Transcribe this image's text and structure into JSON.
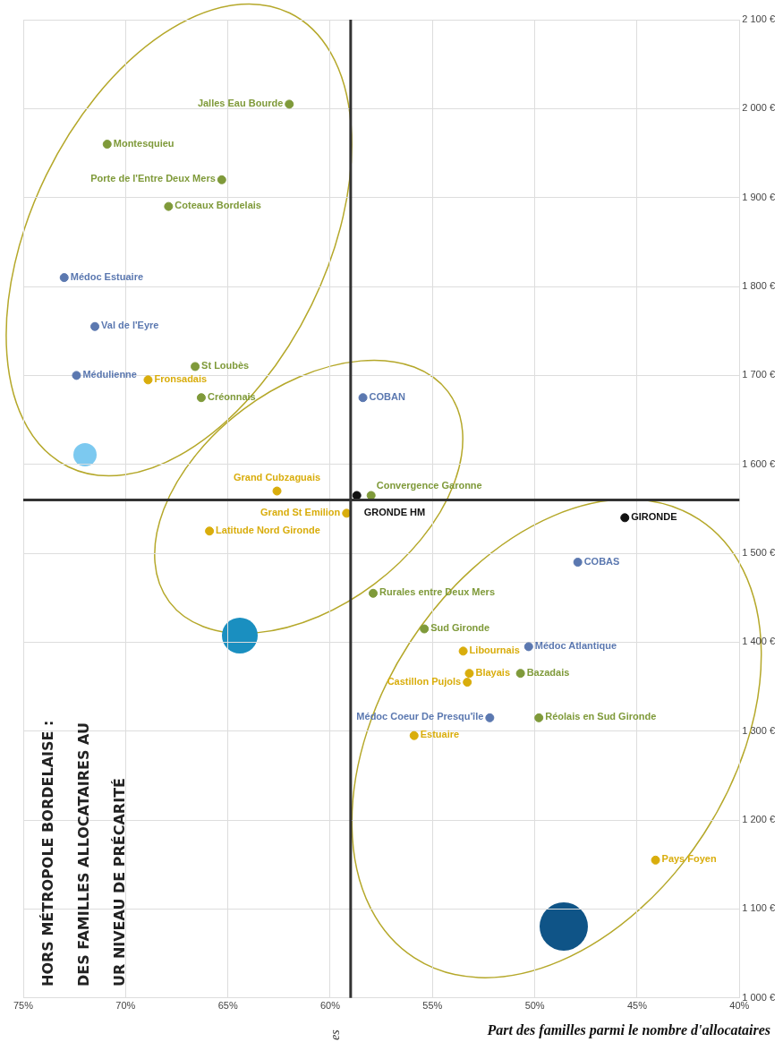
{
  "chart_data": {
    "type": "scatter",
    "title": "HORS MÉTROPOLE BORDELAISE :\nDES FAMILLES ALLOCATAIRES AU\nUR NIVEAU DE PRÉCARITÉ",
    "xlabel": "Part des familles parmi le nombre d'allocataires",
    "ylabel": "es",
    "xlim": [
      75,
      40
    ],
    "xticks": [
      {
        "value": 75,
        "label": "75%"
      },
      {
        "value": 70,
        "label": "70%"
      },
      {
        "value": 65,
        "label": "65%"
      },
      {
        "value": 60,
        "label": "60%"
      },
      {
        "value": 55,
        "label": "55%"
      },
      {
        "value": 50,
        "label": "50%"
      },
      {
        "value": 45,
        "label": "45%"
      },
      {
        "value": 40,
        "label": "40%"
      }
    ],
    "ylim": [
      1000,
      2100
    ],
    "yticks": [
      {
        "value": 1000,
        "label": "1 000 €"
      },
      {
        "value": 1100,
        "label": "1 100 €"
      },
      {
        "value": 1200,
        "label": "1 200 €"
      },
      {
        "value": 1300,
        "label": "1 300 €"
      },
      {
        "value": 1400,
        "label": "1 400 €"
      },
      {
        "value": 1500,
        "label": "1 500 €"
      },
      {
        "value": 1600,
        "label": "1 600 €"
      },
      {
        "value": 1700,
        "label": "1 700 €"
      },
      {
        "value": 1800,
        "label": "1 800 €"
      },
      {
        "value": 1900,
        "label": "1 900 €"
      },
      {
        "value": 2000,
        "label": "2 000 €"
      },
      {
        "value": 2100,
        "label": "2 100 €"
      }
    ],
    "grid": true,
    "marker": "circle",
    "ref_lines": [
      {
        "axis": "x",
        "value": 59,
        "color": "#333333"
      },
      {
        "axis": "y",
        "value": 1560,
        "color": "#333333"
      }
    ],
    "series": [
      {
        "color": "#5b78b0",
        "x": [
          72.4,
          71.5,
          73.0,
          58.4,
          47.9,
          50.3,
          52.2
        ],
        "values": [
          1700,
          1755,
          1810,
          1675,
          1490,
          1395,
          1315
        ],
        "value_labels": [
          "Médulienne",
          "Val de l'Eyre",
          "Médoc Estuaire",
          "COBAN",
          "COBAS",
          "Médoc Atlantique",
          "Médoc Coeur De Presqu'île"
        ]
      },
      {
        "color": "#7f9a3a",
        "x": [
          70.9,
          67.9,
          65.3,
          62.0,
          66.6,
          66.3,
          58.0,
          57.9,
          55.4,
          50.7,
          49.8
        ],
        "values": [
          1960,
          1890,
          1920,
          2005,
          1710,
          1675,
          1565,
          1455,
          1415,
          1365,
          1315
        ],
        "value_labels": [
          "Montesquieu",
          "Coteaux Bordelais",
          "Porte de l'Entre Deux Mers",
          "Jalles Eau Bourde",
          "St Loubès",
          "Créonnais",
          "Convergence Garonne",
          "Rurales entre Deux Mers",
          "Sud Gironde",
          "Bazadais",
          "Réolais en Sud Gironde"
        ]
      },
      {
        "color": "#d9ad0c",
        "x": [
          68.9,
          62.6,
          59.2,
          65.9,
          53.5,
          53.3,
          53.2,
          55.9,
          44.1
        ],
        "values": [
          1695,
          1570,
          1545,
          1525,
          1390,
          1355,
          1365,
          1295,
          1155
        ],
        "value_labels": [
          "Fronsadais",
          "Grand Cubzaguais",
          "Grand St Emilion",
          "Latitude Nord Gironde",
          "Libournais",
          "Castillon Pujols",
          "Blayais",
          "Estuaire",
          "Pays Foyen"
        ]
      },
      {
        "color": "#111111",
        "x": [
          58.7,
          45.6
        ],
        "values": [
          1565,
          1540
        ],
        "value_labels": [
          "GRONDE HM",
          "GIRONDE"
        ]
      }
    ]
  }
}
